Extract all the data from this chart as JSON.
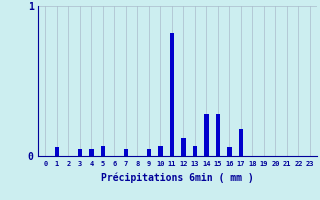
{
  "xlabel": "Précipitations 6min ( mm )",
  "hours": [
    0,
    1,
    2,
    3,
    4,
    5,
    6,
    7,
    8,
    9,
    10,
    11,
    12,
    13,
    14,
    15,
    16,
    17,
    18,
    19,
    20,
    21,
    22,
    23
  ],
  "values": [
    0,
    0.06,
    0,
    0.05,
    0.05,
    0.07,
    0,
    0.05,
    0,
    0.05,
    0.07,
    0.82,
    0.12,
    0.07,
    0.28,
    0.28,
    0.06,
    0.18,
    0,
    0,
    0,
    0,
    0,
    0
  ],
  "bar_color": "#0000cc",
  "bg_color": "#cceef0",
  "plot_bg_color": "#cceef0",
  "grid_color": "#aabbcc",
  "text_color": "#000099",
  "ylim": [
    0,
    1.0
  ],
  "yticks": [
    0,
    1
  ],
  "bar_width": 0.4
}
